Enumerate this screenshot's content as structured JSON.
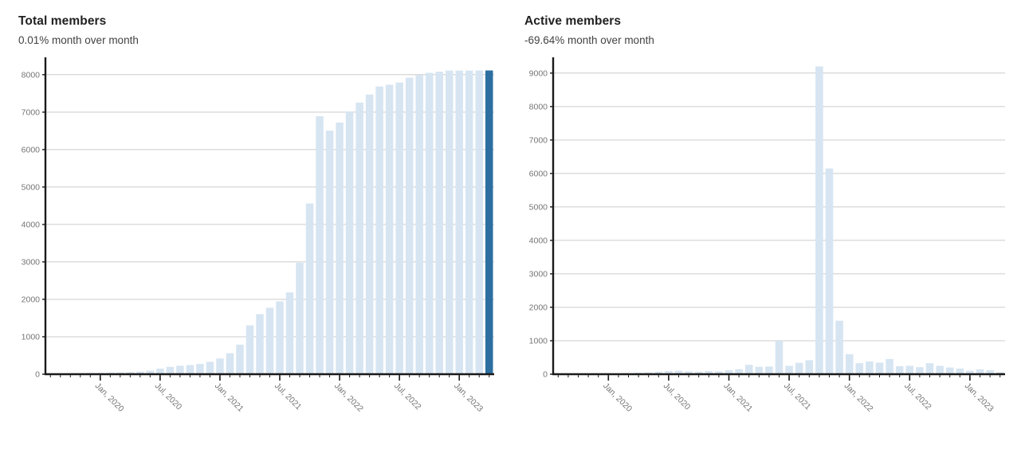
{
  "colors": {
    "background": "#ffffff",
    "title": "#212121",
    "subtitle": "#424242",
    "tick_label": "#757575",
    "grid": "#cccccc",
    "axis": "#1a1a1a",
    "bar": "#d7e5f2",
    "highlight": "#2c6fa0"
  },
  "chart_data": [
    {
      "type": "bar",
      "title": "Total members",
      "subtitle": "0.01% month over month",
      "categories": [
        "Aug 2019",
        "Sep 2019",
        "Oct 2019",
        "Nov 2019",
        "Dec 2019",
        "Jan 2020",
        "Feb 2020",
        "Mar 2020",
        "Apr 2020",
        "May 2020",
        "Jun 2020",
        "Jul 2020",
        "Aug 2020",
        "Sep 2020",
        "Oct 2020",
        "Nov 2020",
        "Dec 2020",
        "Jan 2021",
        "Feb 2021",
        "Mar 2021",
        "Apr 2021",
        "May 2021",
        "Jun 2021",
        "Jul 2021",
        "Aug 2021",
        "Sep 2021",
        "Oct 2021",
        "Nov 2021",
        "Dec 2021",
        "Jan 2022",
        "Feb 2022",
        "Mar 2022",
        "Apr 2022",
        "May 2022",
        "Jun 2022",
        "Jul 2022",
        "Aug 2022",
        "Sep 2022",
        "Oct 2022",
        "Nov 2022",
        "Dec 2022",
        "Jan 2023",
        "Feb 2023",
        "Mar 2023",
        "Apr 2023"
      ],
      "values": [
        25,
        20,
        25,
        30,
        35,
        35,
        40,
        45,
        55,
        70,
        95,
        150,
        195,
        225,
        245,
        275,
        330,
        420,
        560,
        790,
        1305,
        1605,
        1775,
        1945,
        2185,
        2975,
        4560,
        6890,
        6505,
        6720,
        7020,
        7255,
        7470,
        7685,
        7730,
        7790,
        7920,
        7990,
        8050,
        8080,
        8110,
        8110,
        8110,
        8112,
        8113
      ],
      "x_tick_labels": [
        "Jan, 2020",
        "Jul, 2020",
        "Jan, 2021",
        "Jul, 2021",
        "Jan, 2022",
        "Jul, 2022",
        "Jan, 2023"
      ],
      "x_tick_indices": [
        5,
        11,
        17,
        23,
        29,
        35,
        41
      ],
      "ylabel_ticks": [
        0,
        1000,
        2000,
        3000,
        4000,
        5000,
        6000,
        7000,
        8000
      ],
      "ylim": [
        0,
        8400
      ],
      "grid": true,
      "legend": "none",
      "bar_color": "#d7e5f2",
      "highlight_color": "#2c6fa0",
      "highlight_index": 44
    },
    {
      "type": "bar",
      "title": "Active members",
      "subtitle": "-69.64% month over month",
      "categories": [
        "Aug 2019",
        "Sep 2019",
        "Oct 2019",
        "Nov 2019",
        "Dec 2019",
        "Jan 2020",
        "Feb 2020",
        "Mar 2020",
        "Apr 2020",
        "May 2020",
        "Jun 2020",
        "Jul 2020",
        "Aug 2020",
        "Sep 2020",
        "Oct 2020",
        "Nov 2020",
        "Dec 2020",
        "Jan 2021",
        "Feb 2021",
        "Mar 2021",
        "Apr 2021",
        "May 2021",
        "Jun 2021",
        "Jul 2021",
        "Aug 2021",
        "Sep 2021",
        "Oct 2021",
        "Nov 2021",
        "Dec 2021",
        "Jan 2022",
        "Feb 2022",
        "Mar 2022",
        "Apr 2022",
        "May 2022",
        "Jun 2022",
        "Jul 2022",
        "Aug 2022",
        "Sep 2022",
        "Oct 2022",
        "Nov 2022",
        "Dec 2022",
        "Jan 2023",
        "Feb 2023",
        "Mar 2023",
        "Apr 2023"
      ],
      "values": [
        15,
        10,
        12,
        18,
        22,
        30,
        25,
        30,
        45,
        55,
        75,
        95,
        105,
        85,
        75,
        95,
        85,
        120,
        150,
        280,
        220,
        230,
        1000,
        250,
        340,
        420,
        9200,
        6150,
        1600,
        600,
        330,
        380,
        345,
        455,
        240,
        250,
        210,
        330,
        250,
        200,
        170,
        105,
        145,
        120,
        36
      ],
      "x_tick_labels": [
        "Jan, 2020",
        "Jul, 2020",
        "Jan, 2021",
        "Jul, 2021",
        "Jan, 2022",
        "Jul, 2022",
        "Jan, 2023"
      ],
      "x_tick_indices": [
        5,
        11,
        17,
        23,
        29,
        35,
        41
      ],
      "ylabel_ticks": [
        0,
        1000,
        2000,
        3000,
        4000,
        5000,
        6000,
        7000,
        8000,
        9000
      ],
      "ylim": [
        0,
        9400
      ],
      "grid": true,
      "legend": "none",
      "bar_color": "#d7e5f2",
      "highlight_color": "#2c6fa0",
      "highlight_index": 44
    }
  ]
}
